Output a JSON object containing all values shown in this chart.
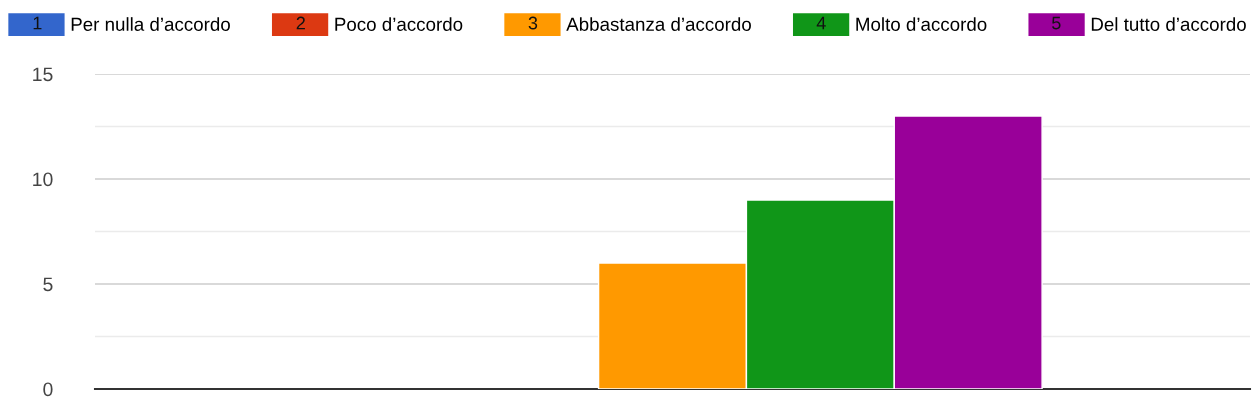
{
  "chart_data": {
    "type": "bar",
    "categories": [
      null
    ],
    "series": [
      {
        "name": "Per nulla d’accordo",
        "color": "#3366cc",
        "values": [
          0
        ]
      },
      {
        "name": "Poco d’accordo",
        "color": "#dc3912",
        "values": [
          0
        ]
      },
      {
        "name": "Abbastanza d’accordo",
        "color": "#ff9900",
        "values": [
          6
        ]
      },
      {
        "name": "Molto d’accordo",
        "color": "#109618",
        "values": [
          9
        ]
      },
      {
        "name": "Del tutto d’accordo",
        "color": "#990099",
        "values": [
          13
        ]
      }
    ],
    "annotations": [
      "1",
      "2",
      "3",
      "4",
      "5"
    ],
    "ylim": [
      0,
      15
    ],
    "yticks": [
      0,
      {
        "value": 2.5,
        "label": null
      },
      5,
      {
        "value": 7.5,
        "label": null
      },
      10,
      {
        "value": 12.5,
        "label": null
      },
      15
    ],
    "grid": "y",
    "legend": "top"
  }
}
